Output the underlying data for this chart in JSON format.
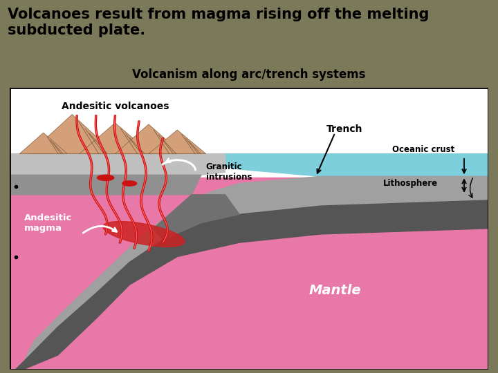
{
  "title_text": "Volcanoes result from magma rising off the melting\nsubducted plate.",
  "title_bg_color": "#7a7a5a",
  "title_fontsize": 15,
  "title_color": "#000000",
  "diagram_title": "Volcanism along arc/trench systems",
  "diagram_title_fontsize": 12,
  "diagram_title_color": "#000000",
  "colors": {
    "sky": "#ffffff",
    "ocean": "#7dcfdc",
    "mantle": "#e878a8",
    "continental_crust_light": "#c8c8c8",
    "continental_crust_dark": "#888888",
    "subducting_slab": "#555555",
    "slab_surface": "#444444",
    "volcano_fill": "#d4a07a",
    "volcano_shadow": "#b07858",
    "magma_red": "#cc1111",
    "magma_bright": "#ee3333",
    "magma_pool": "#cc2222",
    "black": "#000000",
    "white": "#ffffff",
    "border": "#000000",
    "diagram_bg": "#ffffff"
  },
  "labels": {
    "andesitic_volcanoes": "Andesitic volcanoes",
    "trench": "Trench",
    "oceanic_crust": "Oceanic crust",
    "lithosphere": "Lithosphere",
    "granitic_intrusions": "Granitic\nintrusions",
    "andesitic_magma": "Andesitic\nmagma",
    "mantle": "Mantle"
  }
}
